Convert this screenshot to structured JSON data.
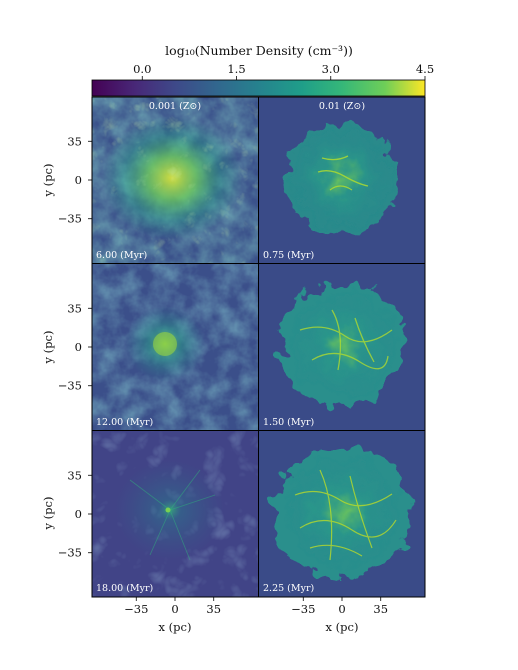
{
  "colorbar": {
    "label": "log₁₀(Number Density (cm⁻³))",
    "ticks": [
      "0.0",
      "1.5",
      "3.0",
      "4.5"
    ],
    "tick_values": [
      0.0,
      1.5,
      3.0,
      4.5
    ],
    "range": [
      -0.8,
      4.5
    ],
    "colormap": "viridis"
  },
  "columns": [
    {
      "title": "0.001 (Z⊙)"
    },
    {
      "title": "0.01 (Z⊙)"
    }
  ],
  "panels": [
    {
      "time_label": "6.00 (Myr)",
      "shape": "diffuse-centered",
      "peak": 3.0
    },
    {
      "time_label": "0.75 (Myr)",
      "shape": "compact-cloud",
      "peak": 3.2
    },
    {
      "time_label": "12.00 (Myr)",
      "shape": "diffuse-centered",
      "peak": 2.4
    },
    {
      "time_label": "1.50 (Myr)",
      "shape": "compact-cloud",
      "peak": 3.4
    },
    {
      "time_label": "18.00 (Myr)",
      "shape": "dispersed-filaments",
      "peak": 2.0
    },
    {
      "time_label": "2.25 (Myr)",
      "shape": "compact-cloud",
      "peak": 3.6
    }
  ],
  "axes": {
    "ylabel": "y (pc)",
    "xlabel": "x (pc)",
    "y_ticks": [
      "35",
      "0",
      "−35"
    ],
    "x_ticks": [
      "−35",
      "0",
      "35"
    ],
    "tick_values": [
      -35,
      0,
      35
    ],
    "extent": [
      -75,
      75
    ]
  }
}
